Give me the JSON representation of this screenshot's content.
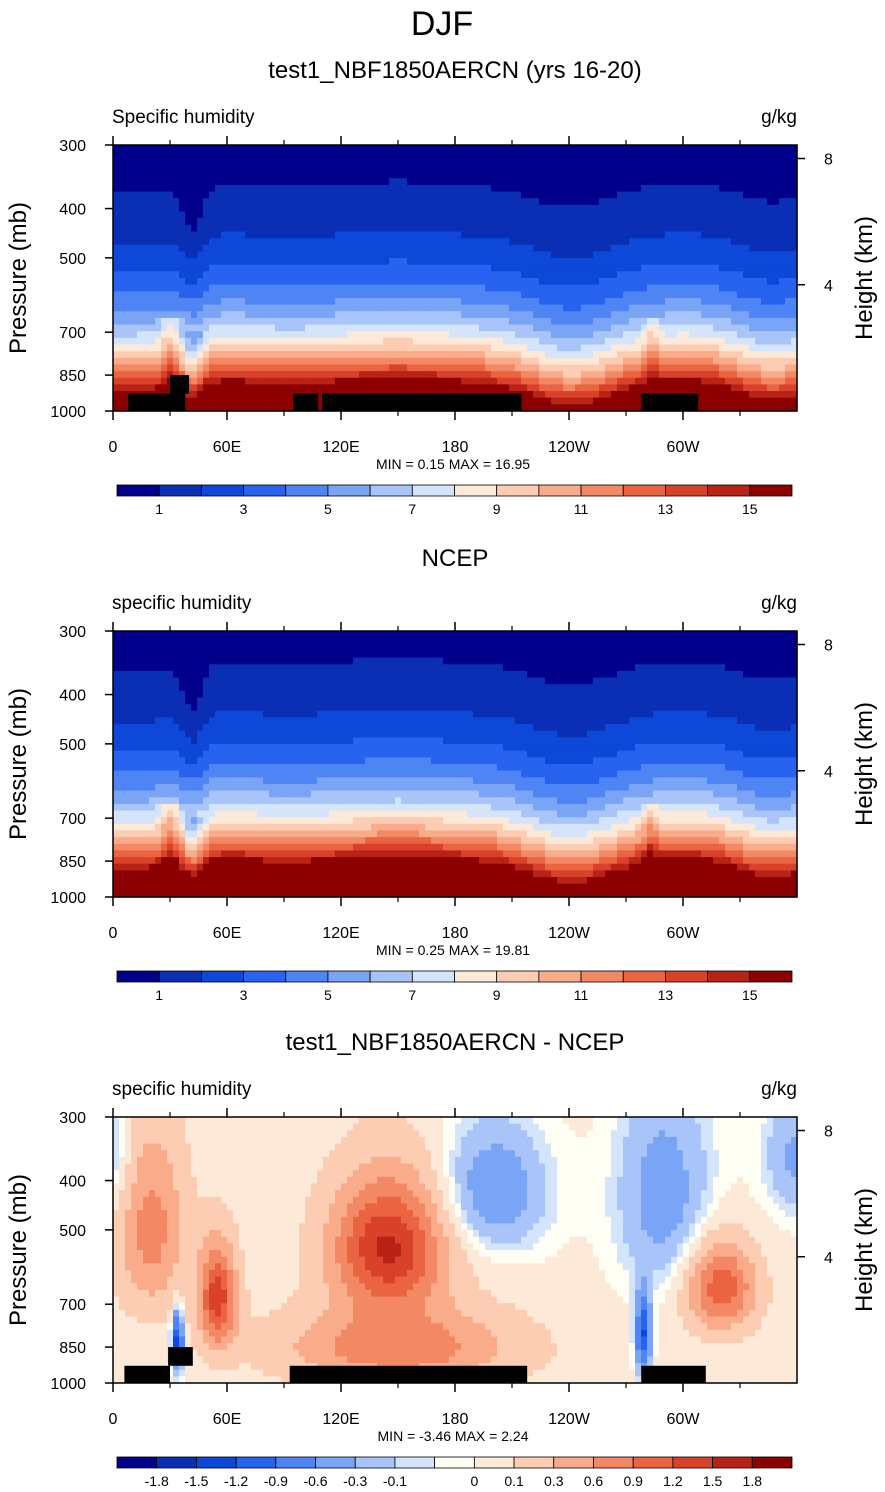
{
  "figure_title": "DJF",
  "chart_data": [
    {
      "type": "heatmap",
      "title": "test1_NBF1850AERCN (yrs 16-20)",
      "left_label": "Specific humidity",
      "right_label": "g/kg",
      "ylabel": "Pressure (mb)",
      "ylabel_right": "Height (km)",
      "yticks": [
        "300",
        "400",
        "500",
        "700",
        "850",
        "1000"
      ],
      "yticks_right": [
        "8",
        "4"
      ],
      "xticks": [
        "0",
        "60E",
        "120E",
        "180",
        "120W",
        "60W"
      ],
      "stats": "MIN =   0.15  MAX =  16.95",
      "min": 0.15,
      "max": 16.95,
      "colorbar_labels": [
        "1",
        "3",
        "5",
        "7",
        "9",
        "11",
        "13",
        "15"
      ],
      "field": "moisture",
      "mask_blocks": [
        [
          8,
          38,
          925,
          1000
        ],
        [
          30,
          40,
          850,
          925
        ],
        [
          95,
          108,
          925,
          1000
        ],
        [
          110,
          215,
          925,
          1000
        ],
        [
          278,
          308,
          925,
          1000
        ]
      ]
    },
    {
      "type": "heatmap",
      "title": "NCEP",
      "left_label": "specific humidity",
      "right_label": "g/kg",
      "ylabel": "Pressure (mb)",
      "ylabel_right": "Height (km)",
      "yticks": [
        "300",
        "400",
        "500",
        "700",
        "850",
        "1000"
      ],
      "yticks_right": [
        "8",
        "4"
      ],
      "xticks": [
        "0",
        "60E",
        "120E",
        "180",
        "120W",
        "60W"
      ],
      "stats": "MIN =   0.25  MAX =  19.81",
      "min": 0.25,
      "max": 19.81,
      "colorbar_labels": [
        "1",
        "3",
        "5",
        "7",
        "9",
        "11",
        "13",
        "15"
      ],
      "field": "moisture_obs",
      "mask_blocks": []
    },
    {
      "type": "heatmap",
      "title": "test1_NBF1850AERCN - NCEP",
      "left_label": "specific humidity",
      "right_label": "g/kg",
      "ylabel": "Pressure (mb)",
      "ylabel_right": "Height (km)",
      "yticks": [
        "300",
        "400",
        "500",
        "700",
        "850",
        "1000"
      ],
      "yticks_right": [
        "8",
        "4"
      ],
      "xticks": [
        "0",
        "60E",
        "120E",
        "180",
        "120W",
        "60W"
      ],
      "stats": "MIN =  -3.46  MAX =   2.24",
      "min": -3.46,
      "max": 2.24,
      "colorbar_labels": [
        "-1.8",
        "-1.5",
        "-1.2",
        "-0.9",
        "-0.6",
        "-0.3",
        "-0.1",
        "0",
        "0.1",
        "0.3",
        "0.6",
        "0.9",
        "1.2",
        "1.5",
        "1.8"
      ],
      "field": "difference",
      "mask_blocks": [
        [
          6,
          30,
          925,
          1000
        ],
        [
          29,
          42,
          850,
          925
        ],
        [
          93,
          218,
          925,
          1000
        ],
        [
          278,
          312,
          925,
          1000
        ]
      ]
    }
  ],
  "colors": {
    "palette_16": [
      "#00008b",
      "#0a2fb4",
      "#0d48d8",
      "#2763ee",
      "#4e84f4",
      "#7aa4f6",
      "#a9c4f8",
      "#d4e4fa",
      "#fde9d8",
      "#fccdb2",
      "#f9ab8a",
      "#f38865",
      "#ea6442",
      "#d9412a",
      "#b92315",
      "#8b0000"
    ],
    "palette_diff": [
      "#00008b",
      "#0a2fb4",
      "#0d48d8",
      "#2763ee",
      "#4e84f4",
      "#7aa4f6",
      "#a9c4f8",
      "#d4e4fa",
      "#fffef4",
      "#fde9d8",
      "#fccdb2",
      "#f9ab8a",
      "#f38865",
      "#ea6442",
      "#d9412a",
      "#b92315",
      "#8b0000"
    ],
    "mask": "#000000"
  }
}
